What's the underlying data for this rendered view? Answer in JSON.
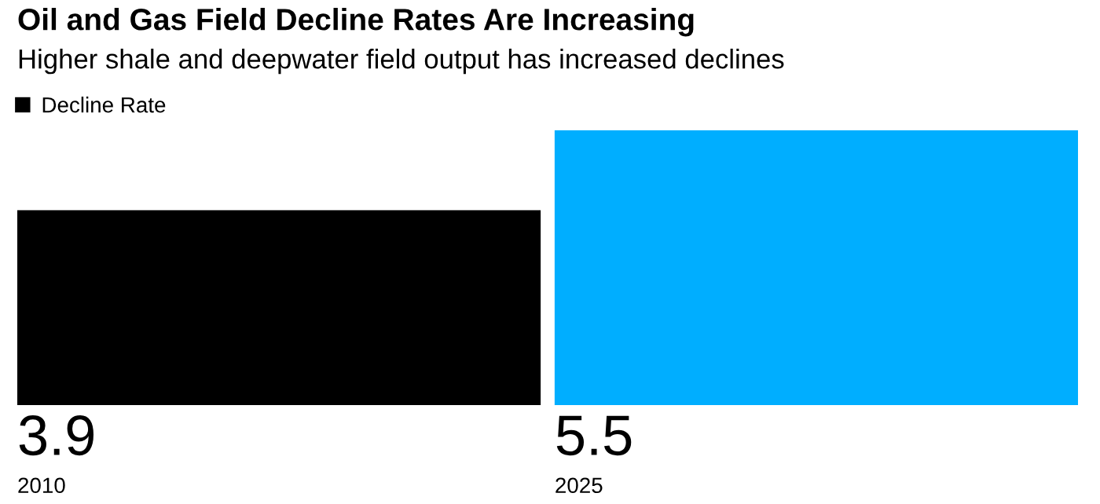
{
  "chart_data": {
    "type": "bar",
    "title": "Oil and Gas Field Decline Rates Are Increasing",
    "subtitle": "Higher shale and deepwater field output has increased declines",
    "categories": [
      "2010",
      "2025"
    ],
    "series": [
      {
        "name": "Decline Rate",
        "color": "#000000",
        "colors": [
          "#000000",
          "#00aeff"
        ],
        "values": [
          3.9,
          5.5
        ]
      }
    ],
    "data_labels": true,
    "legend": "top left",
    "grid": false
  }
}
